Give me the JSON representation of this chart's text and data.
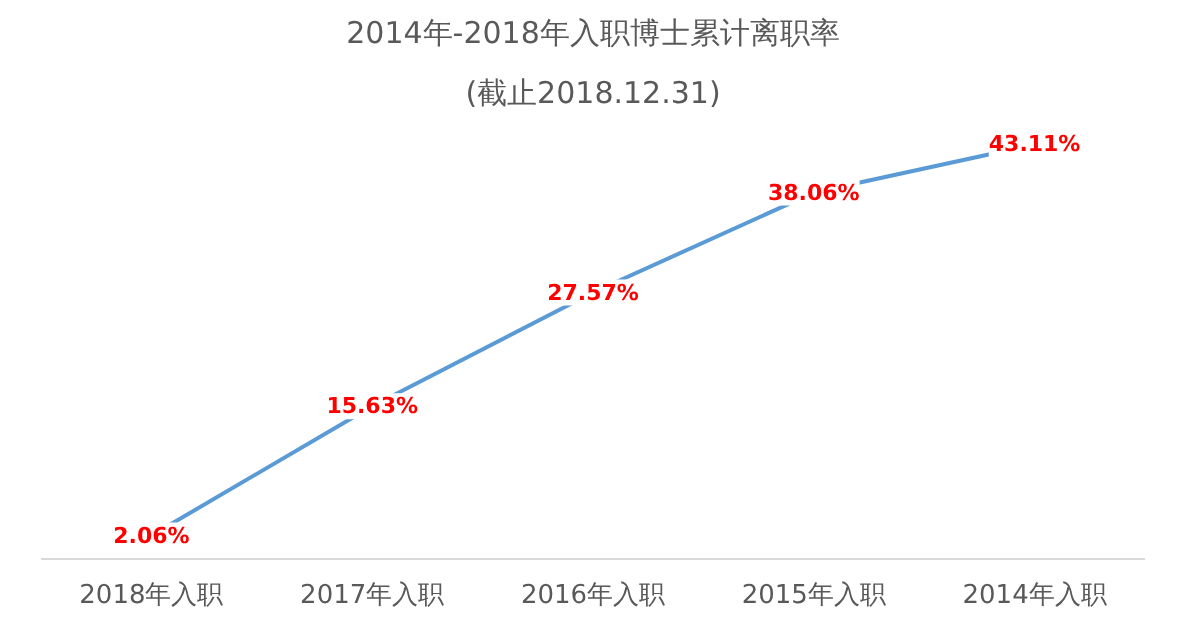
{
  "chart_data": {
    "type": "line",
    "title": "2014年-2018年入职博士累计离职率",
    "subtitle": "(截止2018.12.31)",
    "categories": [
      "2018年入职",
      "2017年入职",
      "2016年入职",
      "2015年入职",
      "2014年入职"
    ],
    "series": [
      {
        "color": "#5b9bd5",
        "values": [
          2.06,
          15.63,
          27.57,
          38.06,
          43.11
        ],
        "value_labels": [
          "2.06%",
          "15.63%",
          "27.57%",
          "38.06%",
          "43.11%"
        ]
      }
    ],
    "grid": false,
    "tick_labels": "x"
  }
}
